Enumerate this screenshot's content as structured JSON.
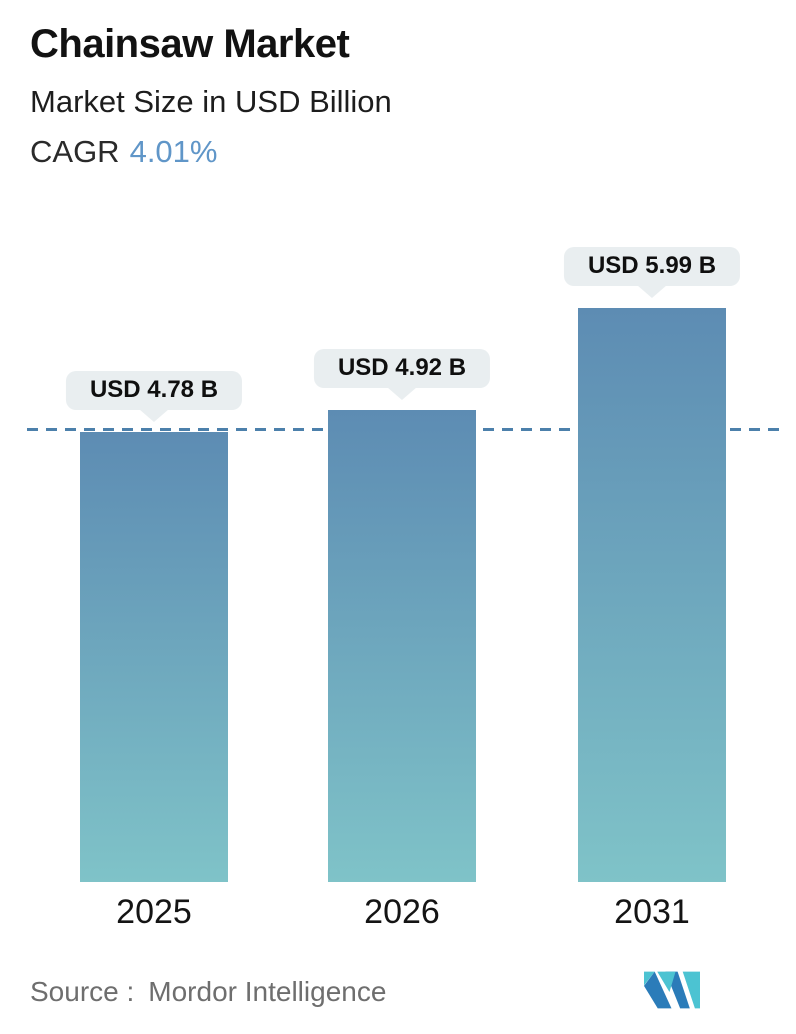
{
  "header": {
    "title": "Chainsaw Market",
    "subtitle": "Market Size in USD Billion",
    "cagr_label": "CAGR",
    "cagr_value": "4.01%",
    "cagr_value_color": "#6096c8"
  },
  "chart_data": {
    "type": "bar",
    "title": "Chainsaw Market",
    "subtitle": "Market Size in USD Billion",
    "unit": "USD Billion",
    "cagr_percent": 4.01,
    "categories": [
      "2025",
      "2026",
      "2031"
    ],
    "values": [
      4.78,
      4.92,
      5.99
    ],
    "value_labels": [
      "USD 4.78 B",
      "USD 4.92 B",
      "USD 5.99 B"
    ],
    "baseline": {
      "style": "dashed-line",
      "at_value": 4.78,
      "color": "#4c80ab"
    },
    "bar_gradient": {
      "top": "#5d8cb3",
      "bottom": "#7fc3c8"
    },
    "callout": {
      "bg": "#e9eef0",
      "text_color": "#0f0f0f"
    },
    "grid": false,
    "legend": false,
    "background": "#ffffff"
  },
  "footer": {
    "source_label": "Source :",
    "source_value": "Mordor Intelligence",
    "logo": "mordor-intelligence-logo",
    "logo_blue": "#2b7cb9",
    "logo_teal": "#4cc3d2"
  }
}
